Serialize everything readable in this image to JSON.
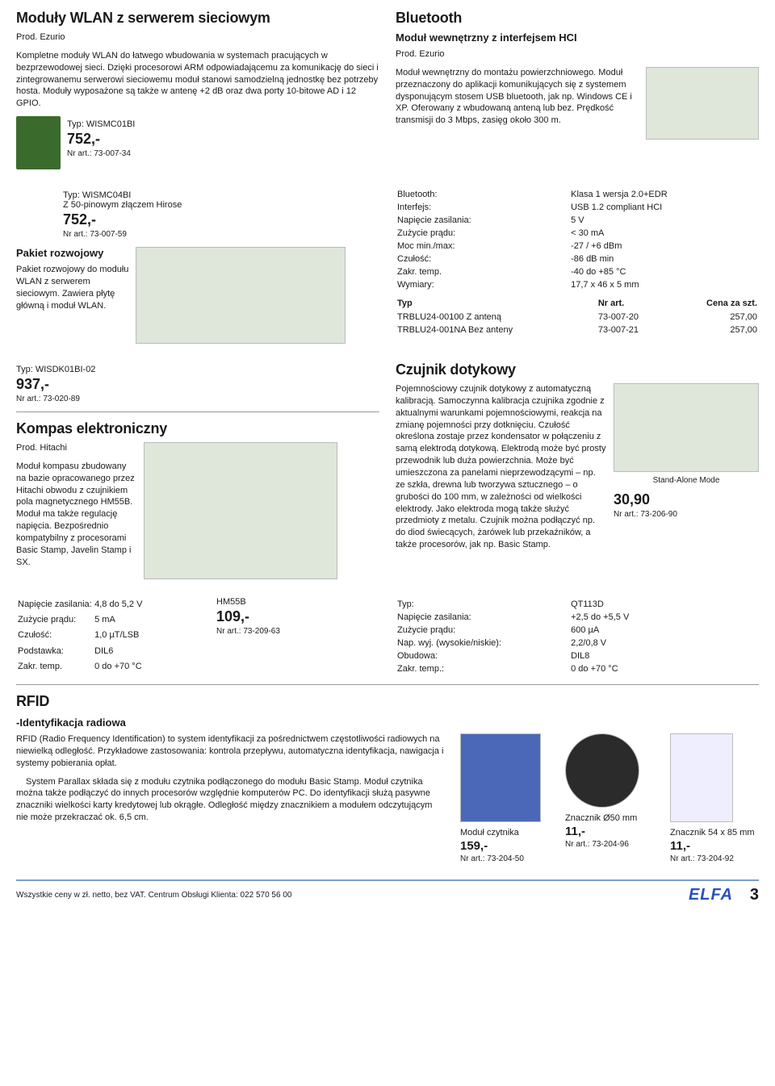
{
  "wlan": {
    "heading": "Moduły WLAN z serwerem sieciowym",
    "prod": "Prod. Ezurio",
    "body": "Kompletne moduły WLAN do łatwego wbudowania w systemach pracujących w bezprzewodowej sieci. Dzięki procesorowi ARM odpowiadającemu za komunikację do sieci i zintegrowanemu serwerowi sieciowemu moduł stanowi samodzielną jednostkę bez potrzeby hosta. Moduły wyposażone są także w antenę +2 dB oraz dwa porty 10-bitowe AD i 12 GPIO.",
    "typ": "Typ: WISMC01BI",
    "price": "752,-",
    "art": "Nr art.: 73-007-34",
    "typ2_a": "Typ: WISMC04BI",
    "typ2_b": "Z 50-pinowym złączem Hirose",
    "price2": "752,-",
    "art2": "Nr art.: 73-007-59",
    "dev_heading": "Pakiet rozwojowy",
    "dev_body": "Pakiet rozwojowy do modułu WLAN z serwerem sieciowym. Zawiera płytę główną i moduł WLAN.",
    "dev_typ": "Typ: WISDK01BI-02",
    "dev_price": "937,-",
    "dev_art": "Nr art.: 73-020-89"
  },
  "bt": {
    "heading": "Bluetooth",
    "sub": "Moduł wewnętrzny z interfejsem HCI",
    "prod": "Prod. Ezurio",
    "body1": "Moduł wewnętrzny do montażu powierzchniowego. Moduł przeznaczony do aplikacji komunikujących się z systemem dysponującym stosem USB bluetooth, jak np. Windows CE i XP. Oferowany z wbudowaną anteną lub bez. Prędkość transmisji do 3 Mbps, zasięg około 300 m.",
    "specs": [
      [
        "Bluetooth:",
        "Klasa 1 wersja 2.0+EDR"
      ],
      [
        "Interfejs:",
        "USB 1.2 compliant HCI"
      ],
      [
        "Napięcie zasilania:",
        "5 V"
      ],
      [
        "Zużycie prądu:",
        "< 30 mA"
      ],
      [
        "Moc min./max:",
        "-27 / +6 dBm"
      ],
      [
        "Czułość:",
        "-86 dB min"
      ],
      [
        "Zakr. temp.",
        "-40 do +85 °C"
      ],
      [
        "Wymiary:",
        "17,7 x 46 x 5 mm"
      ]
    ],
    "th": [
      "Typ",
      "Nr art.",
      "Cena za szt."
    ],
    "rows": [
      [
        "TRBLU24-00100 Z anteną",
        "73-007-20",
        "257,00"
      ],
      [
        "TRBLU24-001NA Bez anteny",
        "73-007-21",
        "257,00"
      ]
    ]
  },
  "compass": {
    "heading": "Kompas elektroniczny",
    "prod": "Prod. Hitachi",
    "body": "Moduł kompasu zbudowany na bazie opracowanego przez Hitachi obwodu z czujnikiem pola magnetycznego HM55B. Moduł ma także regulację napięcia. Bezpośrednio kompatybilny z procesorami Basic Stamp, Javelin Stamp i SX.",
    "specs": [
      [
        "Napięcie zasilania:",
        "4,8 do 5,2 V"
      ],
      [
        "Zużycie prądu:",
        "5 mA"
      ],
      [
        "Czułość:",
        "1,0 µT/LSB"
      ],
      [
        "Podstawka:",
        "DIL6"
      ],
      [
        "Zakr. temp.",
        "0 do +70 °C"
      ]
    ],
    "name": "HM55B",
    "price": "109,-",
    "art": "Nr art.: 73-209-63"
  },
  "touch": {
    "heading": "Czujnik dotykowy",
    "body": "Pojemnościowy czujnik dotykowy z automatyczną kalibracją. Samoczynna kalibracja czujnika zgodnie z aktualnymi warunkami pojemnościowymi, reakcja na zmianę pojemności przy dotknięciu. Czułość określona zostaje przez kondensator w połączeniu z samą elektrodą dotykową. Elektrodą może być prosty przewodnik lub duża powierzchnia. Może być umieszczona za panelami nieprzewodzącymi – np. ze szkła, drewna lub tworzywa sztucznego – o grubości do 100 mm, w zależności od wielkości elektrody. Jako elektroda mogą także służyć przedmioty z metalu. Czujnik można podłączyć np. do diod świecących, żarówek lub przekaźników, a także procesorów, jak np. Basic Stamp.",
    "diagram_label": "Stand-Alone Mode",
    "price": "30,90",
    "art": "Nr art.: 73-206-90",
    "specs": [
      [
        "Typ:",
        "QT113D"
      ],
      [
        "Napięcie zasilania:",
        "+2,5 do +5,5 V"
      ],
      [
        "Zużycie prądu:",
        "600 µA"
      ],
      [
        "Nap. wyj. (wysokie/niskie):",
        "2,2/0,8 V"
      ],
      [
        "Obudowa:",
        "DIL8"
      ],
      [
        "Zakr. temp.:",
        "0 do +70 °C"
      ]
    ]
  },
  "rfid": {
    "heading": "RFID",
    "sub": "-Identyfikacja radiowa",
    "body": "RFID (Radio Frequency Identification) to system identyfikacji za pośrednictwem częstotliwości radiowych na niewielką odległość. Przykładowe zastosowania: kontrola przepływu, automatyczna identyfikacja, nawigacja i systemy pobierania opłat.",
    "body2": "System Parallax składa się z modułu czytnika podłączonego do modułu Basic Stamp. Moduł czytnika można także podłączyć do innych procesorów względnie komputerów PC. Do identyfikacji służą pasywne znaczniki wielkości karty kredytowej lub okrągłe. Odległość między znacznikiem a modułem odczytującym nie może przekraczać ok. 6,5 cm.",
    "p1_label": "Moduł czytnika",
    "p1_price": "159,-",
    "p1_art": "Nr art.: 73-204-50",
    "p2_label": "Znacznik Ø50 mm",
    "p2_price": "11,-",
    "p2_art": "Nr art.: 73-204-96",
    "p3_label": "Znacznik 54 x 85 mm",
    "p3_price": "11,-",
    "p3_art": "Nr art.: 73-204-92"
  },
  "footer": {
    "note": "Wszystkie ceny w zł. netto, bez VAT. Centrum Obsługi Klienta: 022 570 56 00",
    "brand": "ELFA",
    "page": "3"
  }
}
